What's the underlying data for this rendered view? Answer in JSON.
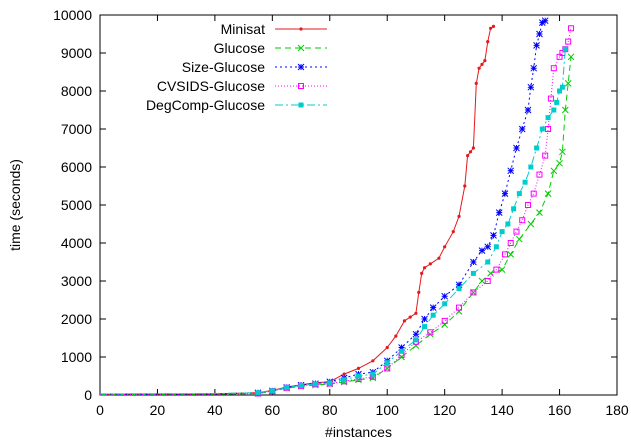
{
  "chart_data": {
    "type": "line",
    "title": "",
    "xlabel": "#instances",
    "ylabel": "time (seconds)",
    "xlim": [
      0,
      180
    ],
    "ylim": [
      0,
      10000
    ],
    "xticks": [
      0,
      20,
      40,
      60,
      80,
      100,
      120,
      140,
      160,
      180
    ],
    "yticks": [
      0,
      1000,
      2000,
      3000,
      4000,
      5000,
      6000,
      7000,
      8000,
      9000,
      10000
    ],
    "grid": false,
    "legend_position": "top-left",
    "series": [
      {
        "name": "Minisat",
        "color": "#e41a1c",
        "dash": "solid",
        "marker": "dot",
        "x": [
          0,
          40,
          55,
          60,
          65,
          70,
          75,
          80,
          85,
          90,
          95,
          100,
          103,
          106,
          108,
          110,
          111,
          112,
          113,
          115,
          118,
          120,
          123,
          125,
          127,
          128,
          129,
          130,
          131,
          132,
          133,
          134,
          135,
          136,
          137
        ],
        "y": [
          20,
          30,
          60,
          120,
          210,
          270,
          320,
          350,
          550,
          700,
          900,
          1250,
          1550,
          1950,
          2050,
          2150,
          2700,
          3200,
          3350,
          3450,
          3600,
          3900,
          4300,
          4700,
          5500,
          6300,
          6400,
          6500,
          8200,
          8600,
          8700,
          8800,
          9300,
          9650,
          9700
        ]
      },
      {
        "name": "Glucose",
        "color": "#00cc00",
        "dash": "6,4",
        "marker": "x",
        "x": [
          0,
          40,
          55,
          60,
          65,
          70,
          75,
          80,
          85,
          90,
          95,
          100,
          105,
          110,
          115,
          120,
          125,
          130,
          133,
          136,
          140,
          143,
          146,
          150,
          153,
          156,
          158,
          160,
          161,
          162,
          163,
          164
        ],
        "y": [
          10,
          20,
          40,
          100,
          180,
          230,
          260,
          290,
          340,
          400,
          450,
          700,
          1000,
          1300,
          1600,
          1850,
          2200,
          2700,
          3000,
          3200,
          3300,
          3700,
          4100,
          4500,
          4800,
          5300,
          5900,
          6100,
          6400,
          7500,
          8200,
          8900
        ]
      },
      {
        "name": "Size-Glucose",
        "color": "#0000ff",
        "dash": "2,3",
        "marker": "star",
        "x": [
          0,
          40,
          55,
          60,
          65,
          70,
          75,
          80,
          85,
          90,
          95,
          100,
          105,
          110,
          113,
          116,
          120,
          125,
          130,
          133,
          135,
          137,
          139,
          141,
          143,
          145,
          147,
          149,
          150,
          151,
          152,
          153,
          154,
          155
        ],
        "y": [
          20,
          30,
          60,
          110,
          200,
          260,
          300,
          350,
          450,
          550,
          600,
          900,
          1250,
          1600,
          2000,
          2300,
          2600,
          2900,
          3500,
          3800,
          3900,
          4200,
          4800,
          5300,
          5900,
          6500,
          7000,
          7500,
          8100,
          8600,
          9200,
          9500,
          9800,
          9850
        ]
      },
      {
        "name": "CVSIDS-Glucose",
        "color": "#ff00ff",
        "dash": "1,2",
        "marker": "square",
        "x": [
          0,
          40,
          55,
          60,
          65,
          70,
          75,
          80,
          85,
          90,
          95,
          100,
          105,
          110,
          115,
          120,
          125,
          130,
          135,
          138,
          141,
          143,
          145,
          147,
          149,
          151,
          153,
          155,
          156,
          157,
          158,
          160,
          161,
          162,
          163,
          164
        ],
        "y": [
          10,
          20,
          40,
          100,
          190,
          240,
          280,
          300,
          360,
          420,
          480,
          700,
          1050,
          1400,
          1650,
          1950,
          2300,
          2700,
          3000,
          3300,
          3700,
          4000,
          4300,
          4600,
          5000,
          5300,
          5800,
          6300,
          7000,
          7800,
          8600,
          8900,
          9000,
          9100,
          9300,
          9650
        ]
      },
      {
        "name": "DegComp-Glucose",
        "color": "#00cccc",
        "dash": "8,3,2,3",
        "marker": "filled-square",
        "x": [
          0,
          40,
          55,
          60,
          65,
          70,
          75,
          80,
          85,
          90,
          95,
          100,
          105,
          110,
          113,
          116,
          120,
          125,
          130,
          135,
          138,
          140,
          142,
          144,
          146,
          148,
          150,
          152,
          154,
          156,
          158,
          159,
          160,
          161,
          162
        ],
        "y": [
          30,
          40,
          60,
          110,
          200,
          250,
          290,
          320,
          400,
          500,
          550,
          850,
          1150,
          1450,
          1800,
          2100,
          2400,
          2800,
          3200,
          3500,
          3900,
          4300,
          4500,
          4900,
          5300,
          5600,
          6000,
          6500,
          7000,
          7300,
          7500,
          7700,
          8000,
          8100,
          9100
        ]
      }
    ]
  }
}
